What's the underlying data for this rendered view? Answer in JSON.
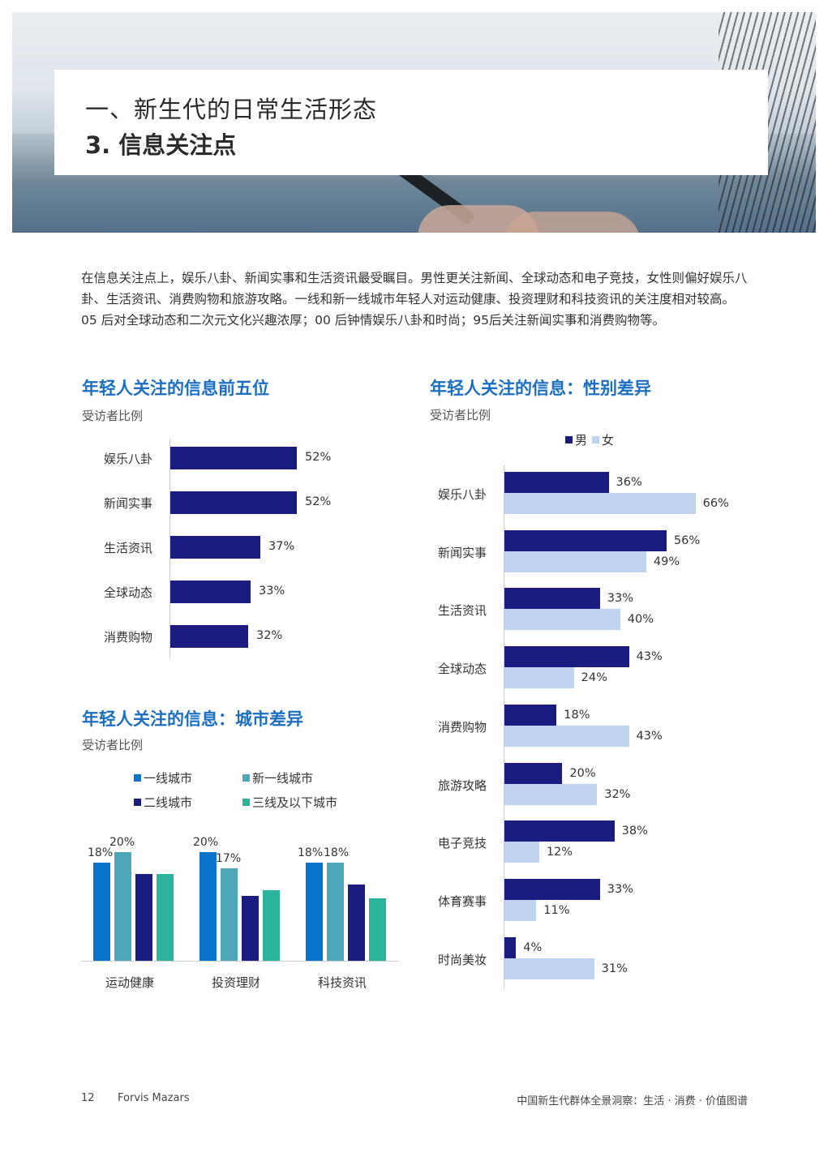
{
  "header": {
    "title_line1": "一、新生代的日常生活形态",
    "title_line2": "3. 信息关注点"
  },
  "intro": "在信息关注点上，娱乐八卦、新闻实事和生活资讯最受瞩目。男性更关注新闻、全球动态和电子竞技，女性则偏好娱乐八卦、生活资讯、消费购物和旅游攻略。一线和新一线城市年轻人对运动健康、投资理财和科技资讯的关注度相对较高。05 后对全球动态和二次元文化兴趣浓厚；00 后钟情娱乐八卦和时尚；95后关注新闻实事和消费购物等。",
  "colors": {
    "navy": "#1b1c80",
    "light_blue": "#bfd3ee",
    "tier1": "#0a74cc",
    "new_tier1": "#4ea7b8",
    "tier2": "#1b1c80",
    "tier3": "#2bb39b",
    "title_blue": "#1c6fc0"
  },
  "chart_data": [
    {
      "type": "bar",
      "orientation": "horizontal",
      "title": "年轻人关注的信息前五位",
      "subtitle": "受访者比例",
      "categories": [
        "娱乐八卦",
        "新闻实事",
        "生活资讯",
        "全球动态",
        "消费购物"
      ],
      "values": [
        52,
        52,
        37,
        33,
        32
      ],
      "labels": [
        "52%",
        "52%",
        "37%",
        "33%",
        "32%"
      ]
    },
    {
      "type": "bar",
      "orientation": "horizontal",
      "title": "年轻人关注的信息：性别差异",
      "subtitle": "受访者比例",
      "legend": "top",
      "categories": [
        "娱乐八卦",
        "新闻实事",
        "生活资讯",
        "全球动态",
        "消费购物",
        "旅游攻略",
        "电子竞技",
        "体育赛事",
        "时尚美妆"
      ],
      "series": [
        {
          "name": "男",
          "values": [
            36,
            56,
            33,
            43,
            18,
            20,
            38,
            33,
            4
          ],
          "labels": [
            "36%",
            "56%",
            "33%",
            "43%",
            "18%",
            "20%",
            "38%",
            "33%",
            "4%"
          ]
        },
        {
          "name": "女",
          "values": [
            66,
            49,
            40,
            24,
            43,
            32,
            12,
            11,
            31
          ],
          "labels": [
            "66%",
            "49%",
            "40%",
            "24%",
            "43%",
            "32%",
            "12%",
            "11%",
            "31%"
          ]
        }
      ]
    },
    {
      "type": "bar",
      "orientation": "vertical",
      "title": "年轻人关注的信息：城市差异",
      "subtitle": "受访者比例",
      "legend": "top",
      "categories": [
        "运动健康",
        "投资理财",
        "科技资讯"
      ],
      "series": [
        {
          "name": "一线城市",
          "values": [
            18,
            20,
            18
          ],
          "labels": [
            "18%",
            "20%",
            "18%"
          ]
        },
        {
          "name": "新一线城市",
          "values": [
            20,
            17,
            18
          ],
          "labels": [
            "20%",
            "17%",
            "18%"
          ]
        },
        {
          "name": "二线城市",
          "values": [
            16,
            12,
            14
          ],
          "labels": [
            "",
            "",
            ""
          ]
        },
        {
          "name": "三线及以下城市",
          "values": [
            16,
            13,
            11.5
          ],
          "labels": [
            "",
            "",
            ""
          ]
        }
      ]
    }
  ],
  "footer": {
    "page_number": "12",
    "brand": "Forvis Mazars",
    "report_title": "中国新生代群体全景洞察：生活 · 消费 · 价值图谱"
  }
}
